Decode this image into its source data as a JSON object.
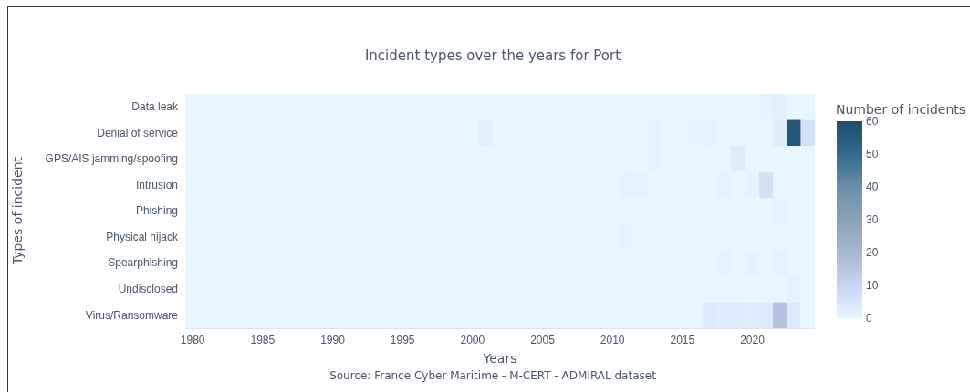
{
  "chart_data": {
    "type": "heatmap",
    "title": "Incident types over the years for Port",
    "xlabel": "Years",
    "ylabel": "Types of incident",
    "clabel": "Number of incidents",
    "x": [
      1980,
      1981,
      1982,
      1983,
      1984,
      1985,
      1986,
      1987,
      1988,
      1989,
      1990,
      1991,
      1992,
      1993,
      1994,
      1995,
      1996,
      1997,
      1998,
      1999,
      2000,
      2001,
      2002,
      2003,
      2004,
      2005,
      2006,
      2007,
      2008,
      2009,
      2010,
      2011,
      2012,
      2013,
      2014,
      2015,
      2016,
      2017,
      2018,
      2019,
      2020,
      2021,
      2022,
      2023,
      2024
    ],
    "xlim": [
      1979.5,
      2024.5
    ],
    "xticks": [
      1980,
      1985,
      1990,
      1995,
      2000,
      2005,
      2010,
      2015,
      2020
    ],
    "y_categories": [
      "Data leak",
      "Denial of service",
      "GPS/AIS jamming/spoofing",
      "Intrusion",
      "Phishing",
      "Physical hijack",
      "Spearphishing",
      "Undisclosed",
      "Virus/Ransomware"
    ],
    "cells": [
      [
        0,
        0,
        0,
        0,
        0,
        0,
        0,
        0,
        0,
        0,
        0,
        0,
        0,
        0,
        0,
        0,
        0,
        0,
        0,
        0,
        0,
        0,
        0,
        0,
        0,
        0,
        0,
        0,
        0,
        0,
        0,
        0,
        0,
        0,
        0,
        0,
        0,
        0,
        0,
        0,
        0,
        1,
        2,
        0,
        0
      ],
      [
        0,
        0,
        0,
        0,
        0,
        0,
        0,
        0,
        0,
        0,
        0,
        0,
        0,
        0,
        0,
        0,
        0,
        0,
        0,
        0,
        0,
        2,
        0,
        0,
        0,
        0,
        0,
        0,
        0,
        0,
        0,
        0,
        0,
        1,
        0,
        0,
        1,
        1,
        0,
        0,
        0,
        0,
        3,
        57,
        6
      ],
      [
        0,
        0,
        0,
        0,
        0,
        0,
        0,
        0,
        0,
        0,
        0,
        0,
        0,
        0,
        0,
        0,
        0,
        0,
        0,
        0,
        0,
        0,
        0,
        0,
        0,
        0,
        0,
        0,
        0,
        0,
        0,
        0,
        0,
        1,
        0,
        0,
        0,
        0,
        0,
        3,
        0,
        0,
        0,
        0,
        0
      ],
      [
        0,
        0,
        0,
        0,
        0,
        0,
        0,
        0,
        0,
        0,
        0,
        0,
        0,
        0,
        0,
        0,
        0,
        0,
        0,
        0,
        0,
        0,
        0,
        0,
        0,
        0,
        0,
        0,
        0,
        0,
        0,
        1,
        1,
        0,
        0,
        0,
        0,
        0,
        1,
        0,
        1,
        6,
        0,
        0,
        0
      ],
      [
        0,
        0,
        0,
        0,
        0,
        0,
        0,
        0,
        0,
        0,
        0,
        0,
        0,
        0,
        0,
        0,
        0,
        0,
        0,
        0,
        0,
        0,
        0,
        0,
        0,
        0,
        0,
        0,
        0,
        0,
        0,
        0,
        0,
        0,
        0,
        0,
        0,
        0,
        0,
        0,
        0,
        0,
        1,
        0,
        0
      ],
      [
        0,
        0,
        0,
        0,
        0,
        0,
        0,
        0,
        0,
        0,
        0,
        0,
        0,
        0,
        0,
        0,
        0,
        0,
        0,
        0,
        0,
        0,
        0,
        0,
        0,
        0,
        0,
        0,
        0,
        0,
        0,
        1,
        0,
        0,
        0,
        0,
        0,
        0,
        0,
        0,
        0,
        0,
        0,
        0,
        0
      ],
      [
        0,
        0,
        0,
        0,
        0,
        0,
        0,
        0,
        0,
        0,
        0,
        0,
        0,
        0,
        0,
        0,
        0,
        0,
        0,
        0,
        0,
        0,
        0,
        0,
        0,
        0,
        0,
        0,
        0,
        0,
        0,
        0,
        0,
        0,
        0,
        0,
        0,
        0,
        1,
        0,
        1,
        0,
        1,
        0,
        0
      ],
      [
        0,
        0,
        0,
        0,
        0,
        0,
        0,
        0,
        0,
        0,
        0,
        0,
        0,
        0,
        0,
        0,
        0,
        0,
        0,
        0,
        0,
        0,
        0,
        0,
        0,
        0,
        0,
        0,
        0,
        0,
        0,
        0,
        0,
        0,
        0,
        0,
        0,
        0,
        0,
        0,
        0,
        0,
        0,
        1,
        0
      ],
      [
        0,
        0,
        0,
        0,
        0,
        0,
        0,
        0,
        0,
        0,
        0,
        0,
        0,
        0,
        0,
        0,
        0,
        0,
        0,
        0,
        0,
        0,
        0,
        0,
        0,
        0,
        0,
        0,
        0,
        0,
        0,
        0,
        0,
        0,
        0,
        0,
        0,
        4,
        3,
        3,
        3,
        4,
        16,
        4,
        0
      ]
    ],
    "clim": [
      0,
      60
    ],
    "cticks": [
      0,
      10,
      20,
      30,
      40,
      50,
      60
    ],
    "annotations": [
      "Source: France Cyber Maritime - M-CERT - ADMIRAL dataset"
    ]
  }
}
